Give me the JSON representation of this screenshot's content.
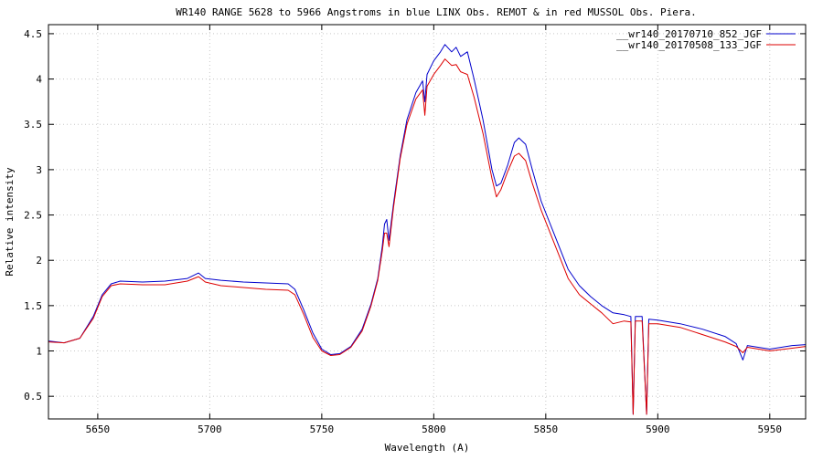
{
  "chart_data": {
    "type": "line",
    "title": "WR140  RANGE 5628  to 5966  Angstroms  in blue LINX  Obs. REMOT &  in red MUSSOL Obs. Piera.",
    "xlabel": "Wavelength (A)",
    "ylabel": "Relative intensity",
    "xlim": [
      5628,
      5966
    ],
    "ylim": [
      0.25,
      4.6
    ],
    "x_ticks": [
      5650,
      5700,
      5750,
      5800,
      5850,
      5900,
      5950
    ],
    "y_ticks": [
      0.5,
      1,
      1.5,
      2,
      2.5,
      3,
      3.5,
      4,
      4.5
    ],
    "grid": true,
    "legend_position": "top-right",
    "series": [
      {
        "name": "__wr140_20170710_852_JGF",
        "color": "#0000cc",
        "points": [
          [
            5628,
            1.11
          ],
          [
            5635,
            1.09
          ],
          [
            5642,
            1.14
          ],
          [
            5648,
            1.38
          ],
          [
            5652,
            1.62
          ],
          [
            5656,
            1.74
          ],
          [
            5660,
            1.77
          ],
          [
            5670,
            1.76
          ],
          [
            5680,
            1.77
          ],
          [
            5690,
            1.8
          ],
          [
            5695,
            1.86
          ],
          [
            5698,
            1.8
          ],
          [
            5705,
            1.78
          ],
          [
            5715,
            1.76
          ],
          [
            5725,
            1.75
          ],
          [
            5735,
            1.74
          ],
          [
            5738,
            1.68
          ],
          [
            5742,
            1.45
          ],
          [
            5746,
            1.2
          ],
          [
            5750,
            1.02
          ],
          [
            5754,
            0.96
          ],
          [
            5758,
            0.97
          ],
          [
            5763,
            1.05
          ],
          [
            5768,
            1.24
          ],
          [
            5772,
            1.52
          ],
          [
            5775,
            1.8
          ],
          [
            5777,
            2.15
          ],
          [
            5778,
            2.4
          ],
          [
            5779,
            2.45
          ],
          [
            5780,
            2.22
          ],
          [
            5782,
            2.62
          ],
          [
            5785,
            3.15
          ],
          [
            5788,
            3.55
          ],
          [
            5792,
            3.85
          ],
          [
            5795,
            3.98
          ],
          [
            5796,
            3.75
          ],
          [
            5797,
            4.05
          ],
          [
            5800,
            4.2
          ],
          [
            5803,
            4.3
          ],
          [
            5805,
            4.38
          ],
          [
            5808,
            4.3
          ],
          [
            5810,
            4.35
          ],
          [
            5812,
            4.25
          ],
          [
            5815,
            4.3
          ],
          [
            5818,
            4.0
          ],
          [
            5822,
            3.55
          ],
          [
            5826,
            3.0
          ],
          [
            5828,
            2.82
          ],
          [
            5830,
            2.85
          ],
          [
            5833,
            3.05
          ],
          [
            5836,
            3.3
          ],
          [
            5838,
            3.35
          ],
          [
            5841,
            3.28
          ],
          [
            5844,
            3.0
          ],
          [
            5848,
            2.65
          ],
          [
            5852,
            2.4
          ],
          [
            5856,
            2.15
          ],
          [
            5860,
            1.9
          ],
          [
            5865,
            1.72
          ],
          [
            5870,
            1.6
          ],
          [
            5875,
            1.5
          ],
          [
            5880,
            1.42
          ],
          [
            5885,
            1.4
          ],
          [
            5888,
            1.38
          ],
          [
            5889,
            0.3
          ],
          [
            5890,
            1.38
          ],
          [
            5893,
            1.38
          ],
          [
            5895,
            0.3
          ],
          [
            5896,
            1.35
          ],
          [
            5900,
            1.34
          ],
          [
            5910,
            1.3
          ],
          [
            5920,
            1.24
          ],
          [
            5930,
            1.16
          ],
          [
            5935,
            1.08
          ],
          [
            5938,
            0.9
          ],
          [
            5940,
            1.06
          ],
          [
            5950,
            1.02
          ],
          [
            5960,
            1.06
          ],
          [
            5966,
            1.07
          ]
        ]
      },
      {
        "name": "__wr140_20170508_133_JGF",
        "color": "#dd0000",
        "points": [
          [
            5628,
            1.1
          ],
          [
            5635,
            1.09
          ],
          [
            5642,
            1.14
          ],
          [
            5648,
            1.36
          ],
          [
            5652,
            1.6
          ],
          [
            5656,
            1.72
          ],
          [
            5660,
            1.74
          ],
          [
            5670,
            1.73
          ],
          [
            5680,
            1.73
          ],
          [
            5690,
            1.77
          ],
          [
            5695,
            1.82
          ],
          [
            5698,
            1.76
          ],
          [
            5705,
            1.72
          ],
          [
            5715,
            1.7
          ],
          [
            5725,
            1.68
          ],
          [
            5735,
            1.67
          ],
          [
            5738,
            1.62
          ],
          [
            5742,
            1.4
          ],
          [
            5746,
            1.15
          ],
          [
            5750,
            1.0
          ],
          [
            5754,
            0.95
          ],
          [
            5758,
            0.96
          ],
          [
            5763,
            1.04
          ],
          [
            5768,
            1.22
          ],
          [
            5772,
            1.5
          ],
          [
            5775,
            1.78
          ],
          [
            5777,
            2.1
          ],
          [
            5778,
            2.3
          ],
          [
            5779,
            2.3
          ],
          [
            5780,
            2.15
          ],
          [
            5782,
            2.58
          ],
          [
            5785,
            3.12
          ],
          [
            5788,
            3.5
          ],
          [
            5792,
            3.78
          ],
          [
            5795,
            3.88
          ],
          [
            5796,
            3.6
          ],
          [
            5797,
            3.92
          ],
          [
            5800,
            4.05
          ],
          [
            5803,
            4.15
          ],
          [
            5805,
            4.22
          ],
          [
            5808,
            4.15
          ],
          [
            5810,
            4.16
          ],
          [
            5812,
            4.08
          ],
          [
            5815,
            4.05
          ],
          [
            5818,
            3.8
          ],
          [
            5822,
            3.4
          ],
          [
            5826,
            2.9
          ],
          [
            5828,
            2.7
          ],
          [
            5830,
            2.78
          ],
          [
            5833,
            2.98
          ],
          [
            5836,
            3.15
          ],
          [
            5838,
            3.18
          ],
          [
            5841,
            3.1
          ],
          [
            5844,
            2.85
          ],
          [
            5848,
            2.55
          ],
          [
            5852,
            2.3
          ],
          [
            5856,
            2.05
          ],
          [
            5860,
            1.8
          ],
          [
            5865,
            1.62
          ],
          [
            5870,
            1.52
          ],
          [
            5875,
            1.42
          ],
          [
            5880,
            1.3
          ],
          [
            5885,
            1.33
          ],
          [
            5888,
            1.32
          ],
          [
            5889,
            0.3
          ],
          [
            5890,
            1.33
          ],
          [
            5893,
            1.33
          ],
          [
            5895,
            0.3
          ],
          [
            5896,
            1.3
          ],
          [
            5900,
            1.3
          ],
          [
            5910,
            1.26
          ],
          [
            5920,
            1.18
          ],
          [
            5930,
            1.1
          ],
          [
            5935,
            1.05
          ],
          [
            5938,
            0.98
          ],
          [
            5940,
            1.04
          ],
          [
            5950,
            1.0
          ],
          [
            5960,
            1.03
          ],
          [
            5966,
            1.05
          ]
        ]
      }
    ]
  }
}
